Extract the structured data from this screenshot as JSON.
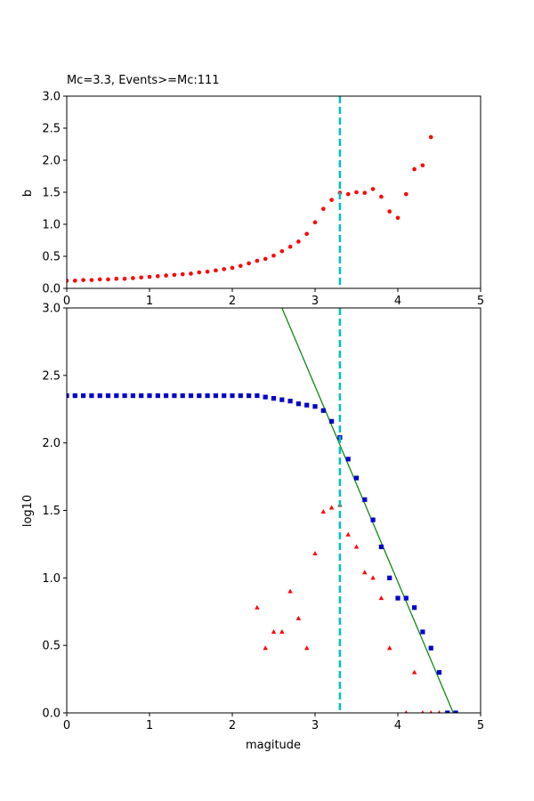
{
  "chart_data": [
    {
      "type": "scatter",
      "title": "Mc=3.3, Events>=Mc:111",
      "xlabel": "",
      "ylabel": "b",
      "xlim": [
        0,
        5
      ],
      "ylim": [
        0,
        3
      ],
      "xticks": [
        "0",
        "1",
        "2",
        "3",
        "4",
        "5"
      ],
      "yticks": [
        "0.0",
        "0.5",
        "1.0",
        "1.5",
        "2.0",
        "2.5",
        "3.0"
      ],
      "mc_line": 3.3,
      "colors": {
        "points": "#ff0000",
        "mc_line": "#00bfbf"
      },
      "series": [
        {
          "marker": "circle",
          "x": [
            0.0,
            0.1,
            0.2,
            0.3,
            0.4,
            0.5,
            0.6,
            0.7,
            0.8,
            0.9,
            1.0,
            1.1,
            1.2,
            1.3,
            1.4,
            1.5,
            1.6,
            1.7,
            1.8,
            1.9,
            2.0,
            2.1,
            2.2,
            2.3,
            2.4,
            2.5,
            2.6,
            2.7,
            2.8,
            2.9,
            3.0,
            3.1,
            3.2,
            3.3,
            3.4,
            3.5,
            3.6,
            3.7,
            3.8,
            3.9,
            4.0,
            4.1,
            4.2,
            4.3,
            4.4
          ],
          "y": [
            0.12,
            0.12,
            0.13,
            0.13,
            0.14,
            0.14,
            0.15,
            0.15,
            0.16,
            0.17,
            0.18,
            0.19,
            0.2,
            0.21,
            0.22,
            0.23,
            0.25,
            0.26,
            0.28,
            0.3,
            0.32,
            0.35,
            0.39,
            0.43,
            0.46,
            0.51,
            0.58,
            0.65,
            0.73,
            0.85,
            1.03,
            1.24,
            1.38,
            1.49,
            1.47,
            1.5,
            1.49,
            1.55,
            1.43,
            1.2,
            1.1,
            1.47,
            1.86,
            1.92,
            2.36
          ]
        }
      ]
    },
    {
      "type": "scatter",
      "title": "",
      "xlabel": "magitude",
      "ylabel": "log10",
      "xlim": [
        0,
        5
      ],
      "ylim": [
        0,
        3
      ],
      "xticks": [
        "0",
        "1",
        "2",
        "3",
        "4",
        "5"
      ],
      "yticks": [
        "0.0",
        "0.5",
        "1.0",
        "1.5",
        "2.0",
        "2.5",
        "3.0"
      ],
      "mc_line": 3.3,
      "fit_line": {
        "x": [
          2.6,
          4.67
        ],
        "y": [
          3.0,
          0.0
        ]
      },
      "colors": {
        "cumulative": "#0000cc",
        "noncumulative": "#ff0000",
        "fit": "#008000",
        "mc_line": "#00bfbf"
      },
      "series": [
        {
          "marker": "square",
          "x": [
            0.0,
            0.1,
            0.2,
            0.3,
            0.4,
            0.5,
            0.6,
            0.7,
            0.8,
            0.9,
            1.0,
            1.1,
            1.2,
            1.3,
            1.4,
            1.5,
            1.6,
            1.7,
            1.8,
            1.9,
            2.0,
            2.1,
            2.2,
            2.3,
            2.4,
            2.5,
            2.6,
            2.7,
            2.8,
            2.9,
            3.0,
            3.1,
            3.2,
            3.3,
            3.4,
            3.5,
            3.6,
            3.7,
            3.8,
            3.9,
            4.0,
            4.1,
            4.2,
            4.3,
            4.4,
            4.5,
            4.6,
            4.7
          ],
          "y": [
            2.35,
            2.35,
            2.35,
            2.35,
            2.35,
            2.35,
            2.35,
            2.35,
            2.35,
            2.35,
            2.35,
            2.35,
            2.35,
            2.35,
            2.35,
            2.35,
            2.35,
            2.35,
            2.35,
            2.35,
            2.35,
            2.35,
            2.35,
            2.35,
            2.34,
            2.33,
            2.32,
            2.31,
            2.29,
            2.28,
            2.27,
            2.24,
            2.16,
            2.04,
            1.88,
            1.74,
            1.58,
            1.43,
            1.23,
            1.0,
            0.85,
            0.85,
            0.78,
            0.6,
            0.48,
            0.3,
            0.0,
            0.0
          ]
        },
        {
          "marker": "triangle",
          "x": [
            2.3,
            2.4,
            2.5,
            2.6,
            2.7,
            2.8,
            2.9,
            3.0,
            3.1,
            3.2,
            3.3,
            3.4,
            3.5,
            3.6,
            3.7,
            3.8,
            3.9,
            4.1,
            4.2,
            4.3,
            4.4,
            4.5
          ],
          "y": [
            0.78,
            0.48,
            0.6,
            0.6,
            0.9,
            0.7,
            0.48,
            1.18,
            1.49,
            1.52,
            1.54,
            1.32,
            1.23,
            1.04,
            1.0,
            0.85,
            0.48,
            0.0,
            0.3,
            0.0,
            0.0,
            0.0
          ]
        }
      ]
    }
  ]
}
